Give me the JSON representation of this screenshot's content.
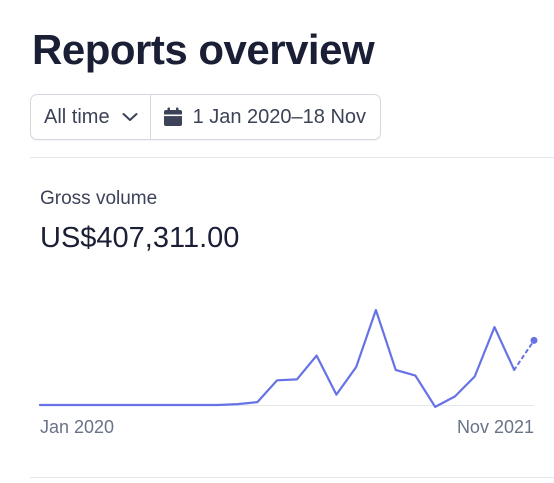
{
  "page_title": "Reports overview",
  "filters": {
    "range_label": "All time",
    "date_range": "1 Jan 2020–18 Nov"
  },
  "metric": {
    "label": "Gross volume",
    "value": "US$407,311.00"
  },
  "chart_data": {
    "type": "line",
    "title": "",
    "xlabel": "",
    "ylabel": "",
    "grid": false,
    "legend": "none",
    "x_tick_labels": [
      "Jan 2020",
      "Nov 2021"
    ],
    "ylim": [
      0,
      100
    ],
    "values": [
      0,
      0,
      0,
      0,
      0,
      0,
      0,
      0,
      0,
      0,
      1,
      3,
      26,
      27,
      52,
      11,
      40,
      100,
      37,
      31,
      -2,
      9,
      30,
      82,
      37
    ],
    "projected_values": [
      37,
      68
    ],
    "colors": {
      "line": "#6772e5",
      "baseline": "#e3e8ee"
    }
  },
  "icons": {
    "chevron": "chevron-down-icon",
    "calendar": "calendar-icon"
  }
}
